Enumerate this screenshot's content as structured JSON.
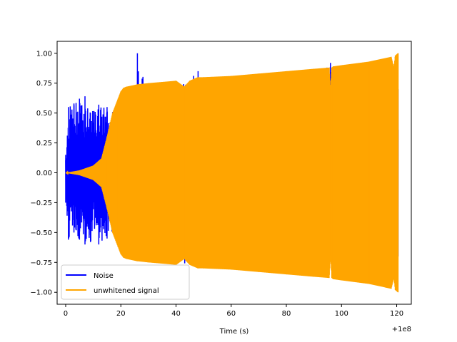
{
  "chart_data": {
    "type": "line",
    "title": "",
    "xlabel": "Time (s)",
    "ylabel": "",
    "x_offset_label": "+1e8",
    "xlim": [
      -3.1,
      125.3
    ],
    "ylim": [
      -1.1,
      1.1
    ],
    "x_ticks": [
      0,
      20,
      40,
      60,
      80,
      100,
      120
    ],
    "x_tick_labels": [
      "0",
      "20",
      "40",
      "60",
      "80",
      "100",
      "120"
    ],
    "y_ticks": [
      1.0,
      0.75,
      0.5,
      0.25,
      0.0,
      -0.25,
      -0.5,
      -0.75,
      -1.0
    ],
    "y_tick_labels": [
      "1.00",
      "0.75",
      "0.50",
      "0.25",
      "0.00",
      "−0.25",
      "−0.50",
      "−0.75",
      "−1.00"
    ],
    "grid": false,
    "legend_position": "lower-left",
    "series": [
      {
        "name": "Noise",
        "color": "#0000ff",
        "envelope": {
          "x": [
            0,
            1,
            3,
            5,
            7,
            9,
            12,
            15,
            20,
            25.5,
            26,
            30,
            40,
            48,
            60,
            80,
            96,
            97,
            102,
            120.5
          ],
          "upper": [
            0.15,
            0.55,
            0.58,
            0.62,
            0.64,
            0.5,
            0.57,
            0.55,
            0.45,
            0.7,
            1.0,
            0.7,
            0.7,
            0.85,
            0.7,
            0.7,
            0.92,
            0.7,
            0.7,
            0.7
          ],
          "lower": [
            -0.25,
            -0.56,
            -0.5,
            -0.56,
            -0.6,
            -0.58,
            -0.6,
            -0.55,
            -0.5,
            -0.7,
            -0.7,
            -0.7,
            -0.75,
            -0.78,
            -0.75,
            -0.75,
            -0.72,
            -0.7,
            -0.7,
            -0.7
          ]
        }
      },
      {
        "name": "unwhitened signal",
        "color": "#ffa500",
        "envelope": {
          "x": [
            0,
            5,
            10,
            13,
            15,
            17,
            19,
            20,
            21,
            22,
            24,
            26,
            30,
            40,
            43,
            45,
            48,
            50,
            60,
            70,
            80,
            90,
            95.5,
            96,
            96.5,
            97,
            100,
            110,
            118,
            119,
            119.5,
            120.5
          ],
          "upper": [
            0.0,
            0.02,
            0.06,
            0.12,
            0.3,
            0.5,
            0.62,
            0.68,
            0.71,
            0.72,
            0.73,
            0.74,
            0.75,
            0.77,
            0.72,
            0.77,
            0.8,
            0.8,
            0.81,
            0.83,
            0.85,
            0.87,
            0.88,
            0.7,
            0.88,
            0.89,
            0.9,
            0.93,
            0.97,
            0.88,
            0.98,
            1.0
          ],
          "lower": [
            0.0,
            -0.02,
            -0.06,
            -0.12,
            -0.3,
            -0.5,
            -0.62,
            -0.68,
            -0.71,
            -0.72,
            -0.73,
            -0.74,
            -0.75,
            -0.77,
            -0.72,
            -0.77,
            -0.8,
            -0.8,
            -0.81,
            -0.83,
            -0.85,
            -0.87,
            -0.88,
            -0.7,
            -0.88,
            -0.89,
            -0.9,
            -0.93,
            -0.97,
            -0.88,
            -0.98,
            -1.0
          ]
        }
      }
    ]
  }
}
